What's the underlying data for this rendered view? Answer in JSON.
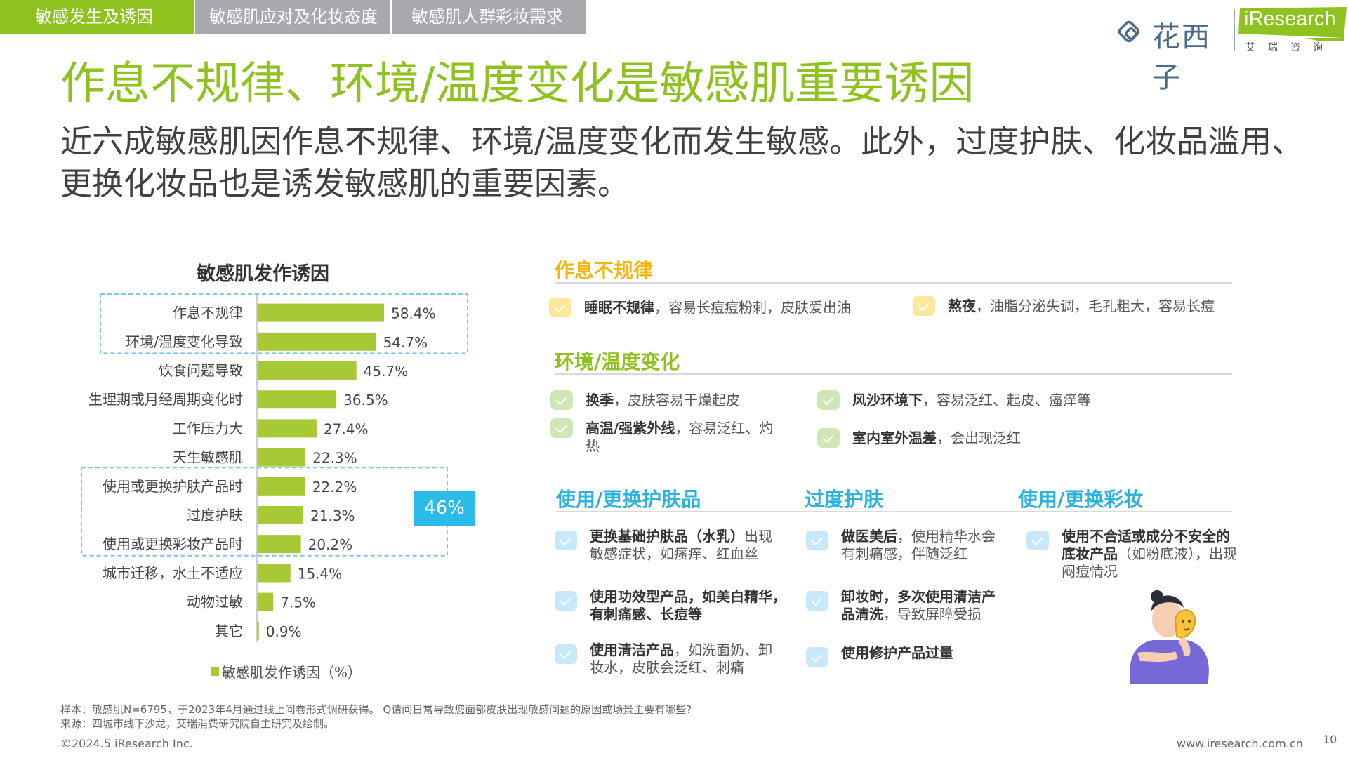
{
  "tabs": [
    "敏感发生及诱因",
    "敏感肌应对及化妆态度",
    "敏感肌人群彩妆需求"
  ],
  "brand": {
    "logo1_text": "花西子",
    "logo2_text": "iResearch",
    "logo2_sub": "艾瑞咨询",
    "green": "#8dc21f",
    "blue": "#2bbbe8"
  },
  "title": "作息不规律、环境/温度变化是敏感肌重要诱因",
  "subtitle": "近六成敏感肌因作息不规律、环境/温度变化而发生敏感。此外，过度护肤、化妆品滥用、更换化妆品也是诱发敏感肌的重要因素。",
  "chart_data": {
    "type": "bar",
    "orientation": "horizontal",
    "title": "敏感肌发作诱因",
    "categories": [
      "作息不规律",
      "环境/温度变化导致",
      "饮食问题导致",
      "生理期或月经周期变化时",
      "工作压力大",
      "天生敏感肌",
      "使用或更换护肤产品时",
      "过度护肤",
      "使用或更换彩妆产品时",
      "城市迁移，水土不适应",
      "动物过敏",
      "其它"
    ],
    "series": [
      {
        "name": "敏感肌发作诱因（%）",
        "values": [
          58.4,
          54.7,
          45.7,
          36.5,
          27.4,
          22.3,
          22.2,
          21.3,
          20.2,
          15.4,
          7.5,
          0.9
        ],
        "labels": [
          "58.4%",
          "54.7%",
          "45.7%",
          "36.5%",
          "27.4%",
          "22.3%",
          "22.2%",
          "21.3%",
          "20.2%",
          "15.4%",
          "7.5%",
          "0.9%"
        ]
      }
    ],
    "color": "#a6c935",
    "highlight_groups": [
      [
        0,
        1
      ],
      [
        6,
        8
      ]
    ],
    "callout": "46%"
  },
  "sections": {
    "routine": {
      "title": "作息不规律",
      "items": [
        {
          "bold": "睡眠不规律",
          "text": "，容易长痘痘粉刺，皮肤爱出油"
        },
        {
          "bold": "熬夜",
          "text": "，油脂分泌失调，毛孔粗大，容易长痘"
        }
      ]
    },
    "environment": {
      "title": "环境/温度变化",
      "items": [
        {
          "bold": "换季",
          "text": "，皮肤容易干燥起皮"
        },
        {
          "bold": "高温/强紫外线",
          "text": "，容易泛红、灼热"
        },
        {
          "bold": "风沙环境下",
          "text": "，容易泛红、起皮、瘙痒等"
        },
        {
          "bold": "室内室外温差",
          "text": "，会出现泛红"
        }
      ]
    },
    "skincare": {
      "title": "使用/更换护肤品",
      "items": [
        {
          "bold": "更换基础护肤品（水乳）",
          "text": "出现敏感症状，如瘙痒、红血丝"
        },
        {
          "bold": "使用功效型产品，如美白精华，有刺痛感、长痘等",
          "text": ""
        },
        {
          "bold": "使用清洁产品",
          "text": "，如洗面奶、卸妆水，皮肤会泛红、刺痛"
        }
      ]
    },
    "overcare": {
      "title": "过度护肤",
      "items": [
        {
          "bold": "做医美后",
          "text": "，使用精华水会有刺痛感，伴随泛红"
        },
        {
          "bold": "卸妆时，多次使用清洁产品清洗",
          "text": "，导致屏障受损"
        },
        {
          "bold": "使用修护产品过量",
          "text": ""
        }
      ]
    },
    "makeup": {
      "title": "使用/更换彩妆",
      "items": [
        {
          "bold": "使用不合适或成分不安全的底妆产品",
          "text": "（如粉底液），出现闷痘情况"
        }
      ]
    }
  },
  "footer": {
    "note1": "样本：敏感肌N=6795，于2023年4月通过线上问卷形式调研获得。 Q请问日常导致您面部皮肤出现敏感问题的原因或场景主要有哪些?",
    "note2": "来源：四城市线下沙龙，艾瑞消费研究院自主研究及绘制。",
    "copyright": "©2024.5 iResearch Inc.",
    "site": "www.iresearch.com.cn",
    "page": "10"
  }
}
